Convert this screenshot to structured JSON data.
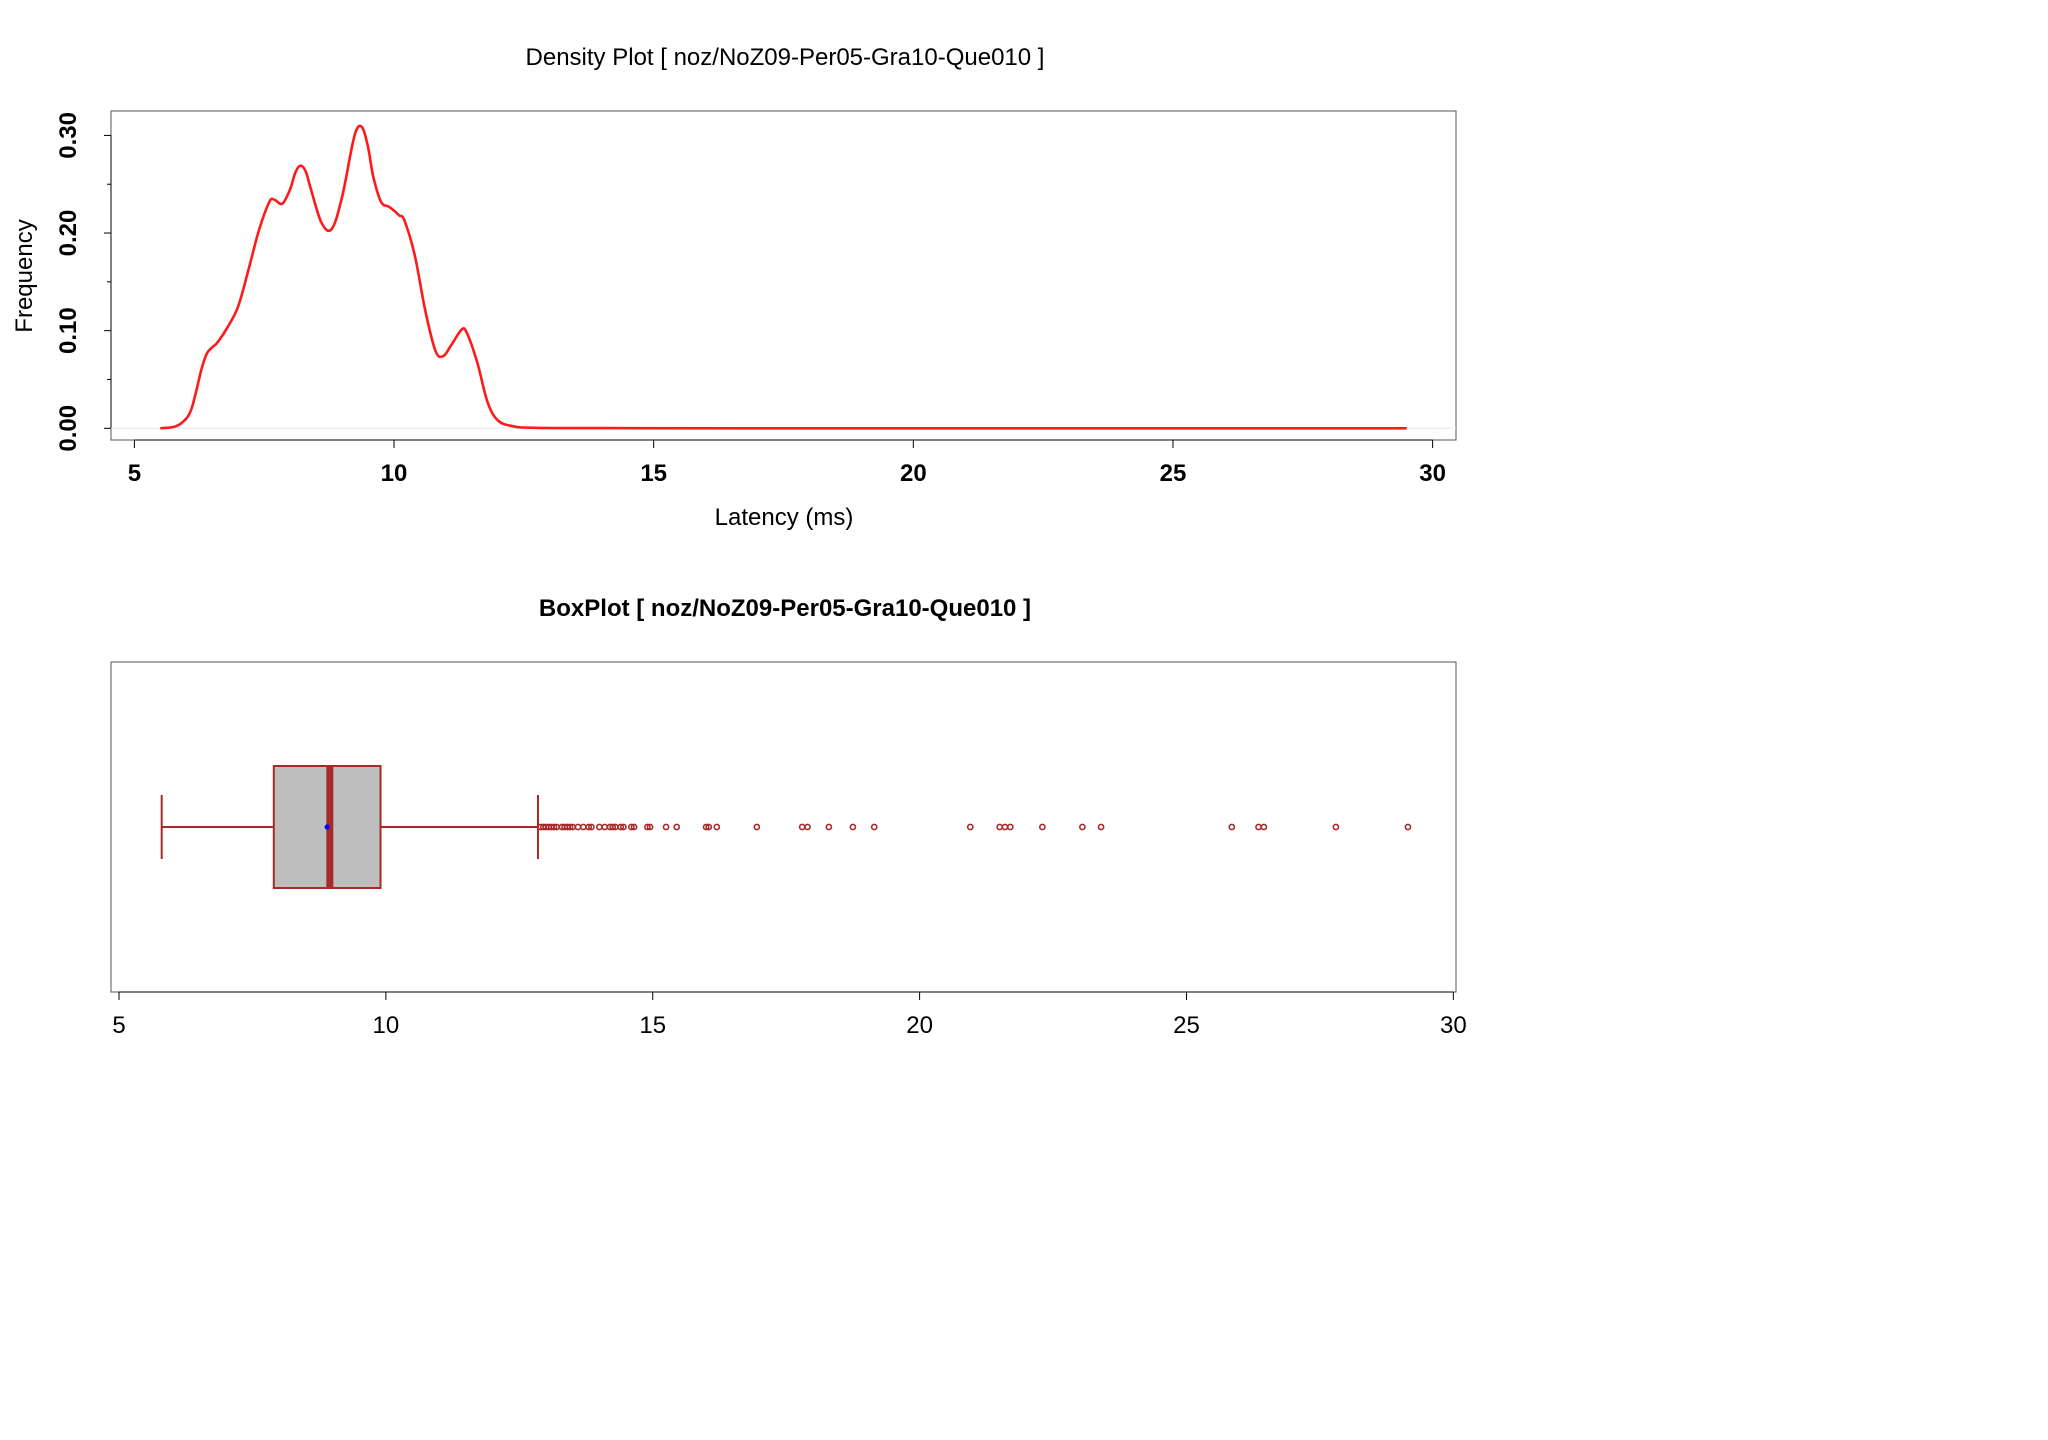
{
  "colors": {
    "density_line": "#ff1a1a",
    "box_stroke": "#a52a2a",
    "box_fill": "#bebebe",
    "mean_point": "#0000ff",
    "frame": "#555555",
    "baseline": "#e8e8e8"
  },
  "chart_data": [
    {
      "type": "line",
      "title": "Density Plot [ noz/NoZ09-Per05-Gra10-Que010 ]",
      "xlabel": "Latency (ms)",
      "ylabel": "Frequency",
      "xlim": [
        4.55,
        30.45
      ],
      "ylim": [
        -0.012,
        0.325
      ],
      "x_ticks": [
        5,
        10,
        15,
        20,
        25,
        30
      ],
      "x_tick_labels": [
        "5",
        "10",
        "15",
        "20",
        "25",
        "30"
      ],
      "y_ticks": [
        0.0,
        0.1,
        0.2,
        0.3
      ],
      "y_tick_labels": [
        "0.00",
        "0.10",
        "0.20",
        "0.30"
      ],
      "y_minor_ticks": [
        0.05,
        0.15,
        0.25
      ],
      "grid": false,
      "series": [
        {
          "x": [
            5.5,
            5.8,
            6.0,
            6.1,
            6.2,
            6.3,
            6.4,
            6.5,
            6.6,
            6.8,
            7.0,
            7.2,
            7.4,
            7.6,
            7.7,
            7.85,
            8.0,
            8.1,
            8.2,
            8.3,
            8.4,
            8.6,
            8.8,
            9.0,
            9.2,
            9.3,
            9.4,
            9.5,
            9.6,
            9.75,
            9.9,
            10.0,
            10.1,
            10.2,
            10.4,
            10.6,
            10.8,
            10.95,
            11.1,
            11.3,
            11.4,
            11.6,
            11.8,
            12.0,
            12.3,
            12.7,
            14.0,
            18.0,
            22.0,
            26.0,
            29.5
          ],
          "y": [
            0.0,
            0.002,
            0.01,
            0.02,
            0.04,
            0.062,
            0.077,
            0.083,
            0.088,
            0.104,
            0.125,
            0.163,
            0.203,
            0.232,
            0.234,
            0.23,
            0.245,
            0.262,
            0.269,
            0.263,
            0.245,
            0.211,
            0.204,
            0.237,
            0.291,
            0.308,
            0.307,
            0.288,
            0.258,
            0.232,
            0.227,
            0.223,
            0.218,
            0.213,
            0.177,
            0.121,
            0.079,
            0.074,
            0.085,
            0.101,
            0.098,
            0.068,
            0.027,
            0.008,
            0.002,
            0.0005,
            0.0002,
            0.0,
            0.0,
            0.0,
            0.0
          ]
        }
      ]
    },
    {
      "type": "box",
      "title": "BoxPlot [ noz/NoZ09-Per05-Gra10-Que010 ]",
      "xlim": [
        4.85,
        30.05
      ],
      "x_ticks": [
        5,
        10,
        15,
        20,
        25,
        30
      ],
      "x_tick_labels": [
        "5",
        "10",
        "15",
        "20",
        "25",
        "30"
      ],
      "whisker_low": 5.8,
      "q1": 7.9,
      "median": 8.95,
      "mean": 8.9,
      "q3": 9.9,
      "whisker_high": 12.85,
      "outliers": [
        12.9,
        12.95,
        13.0,
        13.05,
        13.1,
        13.15,
        13.2,
        13.3,
        13.35,
        13.4,
        13.45,
        13.5,
        13.6,
        13.7,
        13.8,
        13.85,
        14.0,
        14.1,
        14.2,
        14.25,
        14.3,
        14.4,
        14.45,
        14.6,
        14.65,
        14.9,
        14.95,
        15.25,
        15.45,
        16.0,
        16.05,
        16.2,
        16.95,
        17.8,
        17.9,
        18.3,
        18.75,
        19.15,
        20.95,
        21.5,
        21.6,
        21.7,
        22.3,
        23.05,
        23.4,
        25.85,
        26.35,
        26.45,
        27.8,
        29.15
      ]
    }
  ]
}
